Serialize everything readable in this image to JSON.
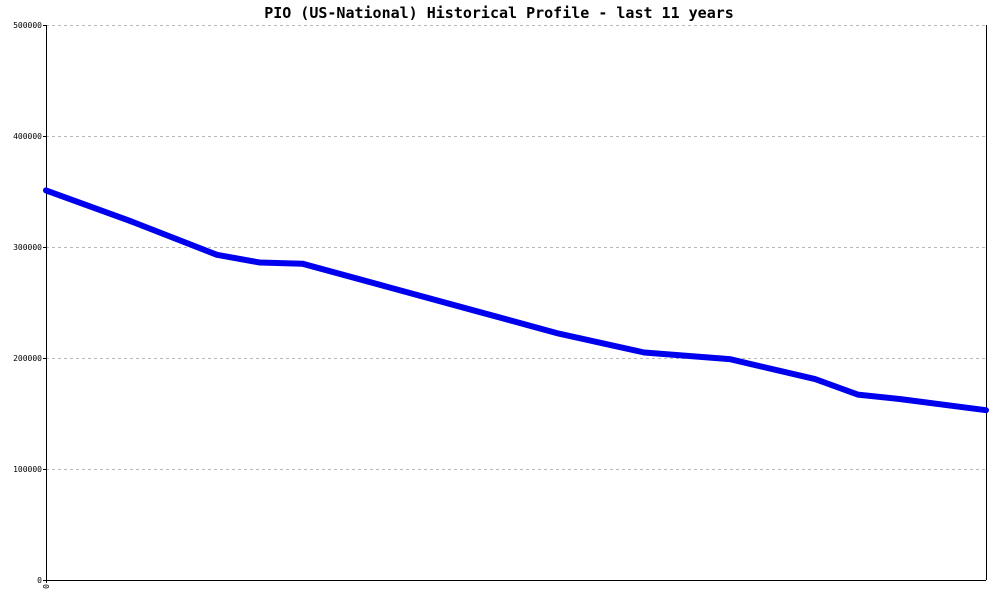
{
  "chart_data": {
    "type": "line",
    "title": "PIO (US-National) Historical Profile - last 11 years",
    "xlabel": "",
    "ylabel": "",
    "ylim": [
      0,
      500000
    ],
    "yticks": [
      0,
      100000,
      200000,
      300000,
      400000,
      500000
    ],
    "ytick_labels": [
      "0",
      "100000",
      "200000",
      "300000",
      "400000",
      "500000"
    ],
    "xticks": [
      0
    ],
    "xtick_labels": [
      "0"
    ],
    "xlim": [
      0,
      11
    ],
    "grid": true,
    "series": [
      {
        "color": "#0000ee",
        "x": [
          0,
          1,
          2,
          2.5,
          3,
          4,
          5,
          6,
          7,
          8,
          9,
          9.5,
          10,
          11
        ],
        "y": [
          351000,
          323000,
          293000,
          286000,
          285000,
          264000,
          243000,
          222000,
          205000,
          199000,
          181000,
          167000,
          163000,
          153000
        ]
      }
    ]
  }
}
